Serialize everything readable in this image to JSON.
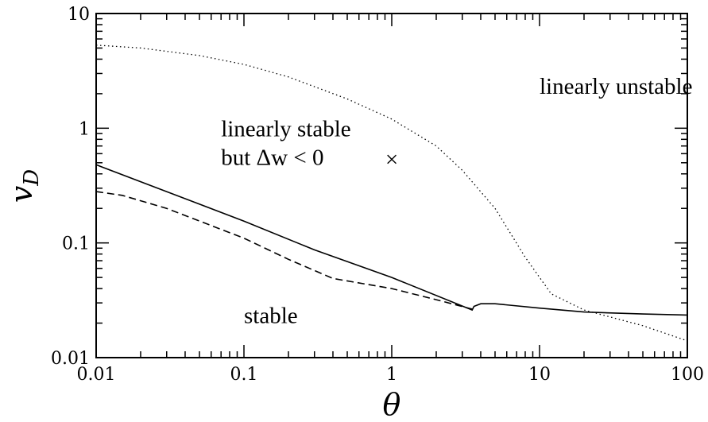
{
  "chart_data": {
    "type": "line",
    "x_scale": "log",
    "y_scale": "log",
    "xlim": [
      0.01,
      100
    ],
    "ylim": [
      0.01,
      10
    ],
    "xlabel": "θ",
    "ylabel": "v",
    "ylabel_sub": "D",
    "x_ticks": [
      {
        "value": 0.01,
        "label": "0.01"
      },
      {
        "value": 0.1,
        "label": "0.1"
      },
      {
        "value": 1,
        "label": "1"
      },
      {
        "value": 10,
        "label": "10"
      },
      {
        "value": 100,
        "label": "100"
      }
    ],
    "y_ticks": [
      {
        "value": 0.01,
        "label": "0.01"
      },
      {
        "value": 0.1,
        "label": "0.1"
      },
      {
        "value": 1,
        "label": "1"
      },
      {
        "value": 10,
        "label": "10"
      }
    ],
    "grid": false,
    "legend": "none",
    "series": [
      {
        "style": "solid",
        "points": [
          [
            0.01,
            0.48
          ],
          [
            0.03,
            0.28
          ],
          [
            0.1,
            0.155
          ],
          [
            0.3,
            0.087
          ],
          [
            1,
            0.05
          ],
          [
            3.5,
            0.026
          ],
          [
            3.6,
            0.028
          ],
          [
            4,
            0.0295
          ],
          [
            5,
            0.0295
          ],
          [
            10,
            0.027
          ],
          [
            20,
            0.025
          ],
          [
            50,
            0.024
          ],
          [
            100,
            0.0235
          ]
        ]
      },
      {
        "style": "dashed",
        "points": [
          [
            0.01,
            0.28
          ],
          [
            0.015,
            0.26
          ],
          [
            0.03,
            0.2
          ],
          [
            0.1,
            0.11
          ],
          [
            0.2,
            0.072
          ],
          [
            0.4,
            0.049
          ],
          [
            1,
            0.04
          ],
          [
            2,
            0.032
          ],
          [
            3.5,
            0.0265
          ]
        ]
      },
      {
        "style": "dotted",
        "points": [
          [
            0.01,
            5.3
          ],
          [
            0.02,
            5.0
          ],
          [
            0.05,
            4.3
          ],
          [
            0.1,
            3.6
          ],
          [
            0.2,
            2.8
          ],
          [
            0.5,
            1.8
          ],
          [
            1,
            1.2
          ],
          [
            2,
            0.7
          ],
          [
            3,
            0.43
          ],
          [
            5,
            0.2
          ],
          [
            8,
            0.075
          ],
          [
            12,
            0.036
          ],
          [
            20,
            0.026
          ],
          [
            50,
            0.019
          ],
          [
            100,
            0.014
          ]
        ]
      }
    ],
    "annotations": [
      {
        "text": "linearly unstable",
        "x": 10,
        "y": 2.0
      },
      {
        "text": "linearly stable",
        "x": 0.07,
        "y": 0.85
      },
      {
        "text": "but Δw < 0",
        "x": 0.07,
        "y": 0.48
      },
      {
        "text": "stable",
        "x": 0.1,
        "y": 0.02
      }
    ],
    "markers": [
      {
        "symbol": "×",
        "x": 1,
        "y": 0.54
      }
    ]
  }
}
